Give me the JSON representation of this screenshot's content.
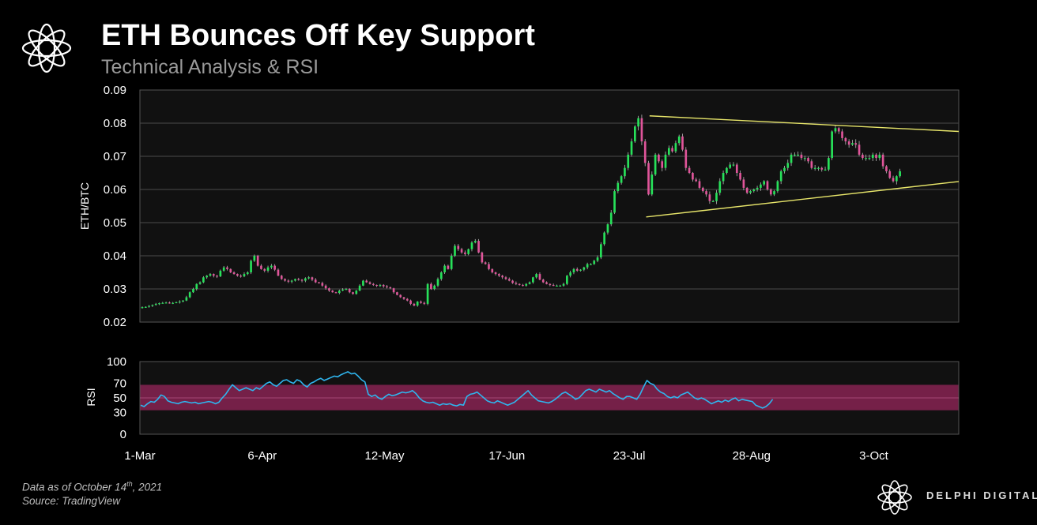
{
  "header": {
    "title": "ETH Bounces Off Key Support",
    "subtitle": "Technical Analysis & RSI"
  },
  "footer": {
    "note_prefix": "Data as of October 14",
    "note_sup": "th",
    "note_suffix": ", 2021",
    "source": "Source: TradingView",
    "brand": "DELPHI DIGITAL"
  },
  "colors": {
    "background": "#000000",
    "plot_bg": "#111111",
    "up": "#27e15a",
    "down": "#e0559a",
    "trendline": "#e7e56a",
    "rsi_line": "#2fb5ee",
    "rsi_band": "#8e2456"
  },
  "chart_data": [
    {
      "type": "candlestick",
      "ylabel": "ETH/BTC",
      "ylim": [
        0.02,
        0.09
      ],
      "yticks": [
        "0.09",
        "0.08",
        "0.07",
        "0.06",
        "0.05",
        "0.04",
        "0.03",
        "0.02"
      ],
      "grid": true,
      "x_start": "2021-03-01",
      "x_end": "2021-10-28",
      "xticks": [
        "1-Mar",
        "6-Apr",
        "12-May",
        "17-Jun",
        "23-Jul",
        "28-Aug",
        "3-Oct"
      ],
      "close": [
        0.0245,
        0.0246,
        0.0249,
        0.0252,
        0.0255,
        0.0257,
        0.0258,
        0.0259,
        0.0257,
        0.0258,
        0.026,
        0.0262,
        0.0265,
        0.0275,
        0.029,
        0.03,
        0.0315,
        0.032,
        0.0335,
        0.034,
        0.0345,
        0.034,
        0.0338,
        0.0355,
        0.0365,
        0.036,
        0.035,
        0.0345,
        0.034,
        0.0338,
        0.0345,
        0.035,
        0.0385,
        0.04,
        0.037,
        0.036,
        0.0355,
        0.0365,
        0.037,
        0.0358,
        0.034,
        0.033,
        0.0325,
        0.0322,
        0.0325,
        0.033,
        0.0328,
        0.0325,
        0.0332,
        0.0335,
        0.0328,
        0.032,
        0.0318,
        0.031,
        0.0302,
        0.0295,
        0.029,
        0.0288,
        0.0295,
        0.0298,
        0.03,
        0.029,
        0.0285,
        0.0295,
        0.031,
        0.0325,
        0.032,
        0.0315,
        0.0312,
        0.031,
        0.0312,
        0.0308,
        0.0305,
        0.0302,
        0.029,
        0.0282,
        0.0275,
        0.027,
        0.0265,
        0.0255,
        0.025,
        0.0262,
        0.0258,
        0.0255,
        0.0315,
        0.03,
        0.031,
        0.033,
        0.035,
        0.037,
        0.036,
        0.04,
        0.043,
        0.042,
        0.041,
        0.0405,
        0.042,
        0.044,
        0.0445,
        0.041,
        0.038,
        0.0375,
        0.036,
        0.035,
        0.0345,
        0.034,
        0.0335,
        0.033,
        0.0325,
        0.0318,
        0.0315,
        0.0312,
        0.031,
        0.0315,
        0.032,
        0.0335,
        0.0345,
        0.0328,
        0.032,
        0.0315,
        0.0312,
        0.031,
        0.031,
        0.031,
        0.0315,
        0.034,
        0.035,
        0.036,
        0.0355,
        0.0358,
        0.0365,
        0.0375,
        0.0375,
        0.0385,
        0.0395,
        0.0435,
        0.047,
        0.0495,
        0.053,
        0.0595,
        0.062,
        0.064,
        0.0665,
        0.0705,
        0.0745,
        0.079,
        0.0815,
        0.0745,
        0.068,
        0.0585,
        0.0645,
        0.0705,
        0.0685,
        0.0665,
        0.0705,
        0.0725,
        0.0715,
        0.074,
        0.076,
        0.072,
        0.0665,
        0.065,
        0.063,
        0.0625,
        0.0605,
        0.0595,
        0.0585,
        0.0565,
        0.0565,
        0.059,
        0.0625,
        0.065,
        0.0665,
        0.0675,
        0.0675,
        0.065,
        0.063,
        0.0605,
        0.059,
        0.0595,
        0.06,
        0.0605,
        0.0615,
        0.0625,
        0.06,
        0.0585,
        0.0595,
        0.0625,
        0.0655,
        0.0665,
        0.068,
        0.0705,
        0.0705,
        0.0705,
        0.0695,
        0.0695,
        0.0685,
        0.0665,
        0.0665,
        0.0665,
        0.066,
        0.066,
        0.0695,
        0.0775,
        0.0785,
        0.0775,
        0.0755,
        0.0745,
        0.0735,
        0.074,
        0.0735,
        0.0705,
        0.0695,
        0.0695,
        0.0695,
        0.0705,
        0.0695,
        0.0705,
        0.067,
        0.0655,
        0.0635,
        0.0625,
        0.064,
        0.0655
      ],
      "trendlines": [
        {
          "from": [
            "2021-07-29",
            0.0822
          ],
          "to": [
            "2021-10-28",
            0.0775
          ]
        },
        {
          "from": [
            "2021-07-28",
            0.0517
          ],
          "to": [
            "2021-10-28",
            0.0624
          ]
        }
      ]
    },
    {
      "type": "line",
      "ylabel": "RSI",
      "ylim": [
        0,
        100
      ],
      "yticks": [
        "100",
        "70",
        "50",
        "30",
        "0"
      ],
      "band": [
        33,
        68
      ],
      "x_start": "2021-03-01",
      "x_end": "2021-10-28",
      "xticks": [
        "1-Mar",
        "6-Apr",
        "12-May",
        "17-Jun",
        "23-Jul",
        "28-Aug",
        "3-Oct"
      ],
      "values": [
        40,
        38,
        42,
        45,
        44,
        48,
        54,
        52,
        46,
        44,
        43,
        42,
        44,
        45,
        44,
        43,
        44,
        42,
        43,
        44,
        45,
        44,
        42,
        44,
        50,
        55,
        62,
        68,
        64,
        60,
        62,
        64,
        62,
        60,
        64,
        62,
        66,
        70,
        72,
        68,
        66,
        70,
        74,
        75,
        72,
        70,
        75,
        73,
        68,
        65,
        70,
        72,
        75,
        77,
        74,
        76,
        78,
        80,
        79,
        82,
        84,
        86,
        83,
        84,
        80,
        75,
        72,
        55,
        52,
        54,
        50,
        48,
        52,
        55,
        53,
        54,
        56,
        58,
        57,
        58,
        60,
        56,
        50,
        46,
        44,
        43,
        44,
        42,
        40,
        42,
        41,
        42,
        40,
        39,
        41,
        40,
        52,
        55,
        56,
        58,
        54,
        50,
        46,
        44,
        43,
        46,
        44,
        42,
        40,
        42,
        44,
        48,
        52,
        56,
        60,
        54,
        50,
        46,
        45,
        44,
        43,
        45,
        48,
        52,
        56,
        58,
        55,
        52,
        48,
        50,
        55,
        60,
        62,
        60,
        58,
        62,
        60,
        58,
        60,
        56,
        53,
        50,
        48,
        52,
        52,
        50,
        48,
        55,
        65,
        74,
        70,
        68,
        62,
        58,
        56,
        52,
        50,
        52,
        50,
        54,
        56,
        58,
        54,
        50,
        48,
        50,
        48,
        45,
        42,
        44,
        46,
        44,
        47,
        45,
        48,
        50,
        46,
        48,
        47,
        46,
        45,
        40,
        38,
        36,
        38,
        42,
        48
      ]
    }
  ]
}
